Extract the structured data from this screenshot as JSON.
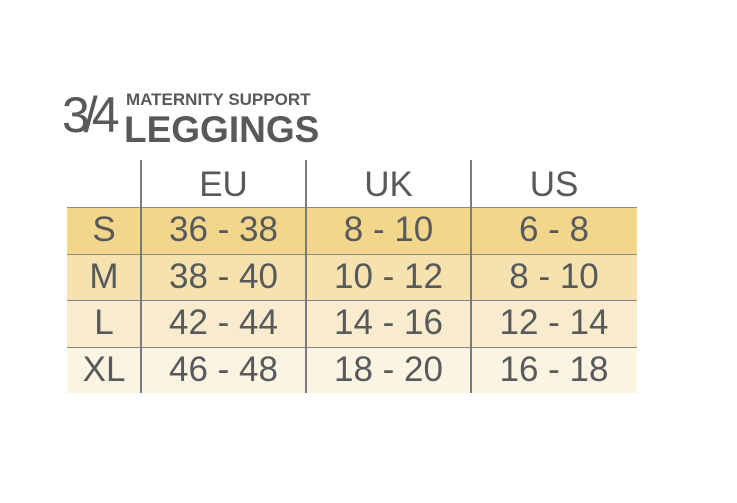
{
  "header": {
    "fraction": "3/4",
    "subtitle": "MATERNITY SUPPORT",
    "title": "LEGGINGS"
  },
  "table": {
    "columns": [
      "EU",
      "UK",
      "US"
    ],
    "rows": [
      [
        "S",
        "36 - 38",
        "8 - 10",
        "6 - 8"
      ],
      [
        "M",
        "38 - 40",
        "10 - 12",
        "8 - 10"
      ],
      [
        "L",
        "42 - 44",
        "14 - 16",
        "12 - 14"
      ],
      [
        "XL",
        "46 - 48",
        "18 - 20",
        "16 - 18"
      ]
    ]
  }
}
